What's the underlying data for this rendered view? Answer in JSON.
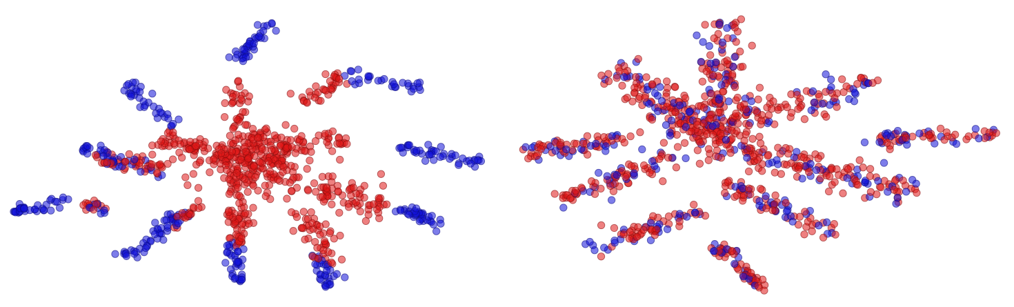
{
  "chart_data": [
    {
      "type": "scatter",
      "title": "",
      "xlabel": "",
      "ylabel": "",
      "axes_visible": false,
      "grid": false,
      "legend": "none",
      "point_alpha": 0.55,
      "xlim": [
        0,
        100
      ],
      "ylim": [
        0,
        100
      ],
      "series": [
        {
          "color": "#e01818",
          "clusters": [
            {
              "start": [
                48,
                26
              ],
              "end": [
                48,
                75
              ],
              "spread": 1.6,
              "count": 100
            },
            {
              "start": [
                46,
                52
              ],
              "end": [
                31,
                44
              ],
              "spread": 2.2,
              "count": 70
            },
            {
              "start": [
                50,
                56
              ],
              "end": [
                78,
                68
              ],
              "spread": 3.2,
              "count": 120
            },
            {
              "start": [
                53,
                54
              ],
              "end": [
                60,
                46
              ],
              "spread": 2.2,
              "count": 45
            },
            {
              "start": [
                50,
                44
              ],
              "end": [
                71,
                47
              ],
              "spread": 2.3,
              "count": 50
            },
            {
              "start": [
                33,
                55
              ],
              "end": [
                18,
                51
              ],
              "spread": 1.6,
              "count": 45
            },
            {
              "start": [
                60,
                33
              ],
              "end": [
                70,
                24
              ],
              "spread": 1.2,
              "count": 35
            },
            {
              "start": [
                48,
                64
              ],
              "end": [
                48,
                82
              ],
              "spread": 1.0,
              "count": 35
            },
            {
              "start": [
                61,
                68
              ],
              "end": [
                67,
                88
              ],
              "spread": 1.6,
              "count": 50
            },
            {
              "start": [
                41,
                67
              ],
              "end": [
                33,
                75
              ],
              "spread": 1.1,
              "count": 20
            },
            {
              "start": [
                47,
                48
              ],
              "end": [
                52,
                58
              ],
              "spread": 6,
              "count": 90
            },
            {
              "start": [
                16,
                67
              ],
              "end": [
                21,
                68
              ],
              "spread": 0.8,
              "count": 12
            }
          ]
        },
        {
          "color": "#1212d8",
          "clusters": [
            {
              "start": [
                48,
                18
              ],
              "end": [
                55,
                5
              ],
              "spread": 1.1,
              "count": 40
            },
            {
              "start": [
                25,
                26
              ],
              "end": [
                35,
                42
              ],
              "spread": 1.3,
              "count": 35
            },
            {
              "start": [
                15,
                48
              ],
              "end": [
                33,
                57
              ],
              "spread": 1.3,
              "count": 40
            },
            {
              "start": [
                1,
                70
              ],
              "end": [
                13,
                66
              ],
              "spread": 1.0,
              "count": 35
            },
            {
              "start": [
                70,
                23
              ],
              "end": [
                85,
                28
              ],
              "spread": 1.1,
              "count": 30
            },
            {
              "start": [
                81,
                48
              ],
              "end": [
                98,
                53
              ],
              "spread": 1.2,
              "count": 45
            },
            {
              "start": [
                24,
                86
              ],
              "end": [
                38,
                68
              ],
              "spread": 1.4,
              "count": 50
            },
            {
              "start": [
                47,
                80
              ],
              "end": [
                48,
                94
              ],
              "spread": 1.0,
              "count": 35
            },
            {
              "start": [
                64,
                85
              ],
              "end": [
                67,
                95
              ],
              "spread": 1.1,
              "count": 30
            },
            {
              "start": [
                81,
                69
              ],
              "end": [
                90,
                74
              ],
              "spread": 1.1,
              "count": 35
            },
            {
              "start": [
                17,
                67
              ],
              "end": [
                21,
                70
              ],
              "spread": 0.8,
              "count": 8
            }
          ]
        }
      ]
    },
    {
      "type": "scatter",
      "title": "",
      "xlabel": "",
      "ylabel": "",
      "axes_visible": false,
      "grid": false,
      "legend": "none",
      "point_alpha": 0.55,
      "xlim": [
        0,
        100
      ],
      "ylim": [
        0,
        100
      ],
      "series": [
        {
          "color": "#e01818",
          "clusters": [
            {
              "start": [
                40,
                46
              ],
              "end": [
                80,
                64
              ],
              "spread": 2.6,
              "count": 110
            },
            {
              "start": [
                37,
                46
              ],
              "end": [
                20,
                20
              ],
              "spread": 3.0,
              "count": 90
            },
            {
              "start": [
                40,
                44
              ],
              "end": [
                42,
                5
              ],
              "spread": 2.5,
              "count": 90
            },
            {
              "start": [
                45,
                38
              ],
              "end": [
                73,
                26
              ],
              "spread": 2.5,
              "count": 65
            },
            {
              "start": [
                33,
                50
              ],
              "end": [
                8,
                66
              ],
              "spread": 2.0,
              "count": 55
            },
            {
              "start": [
                1,
                50
              ],
              "end": [
                22,
                45
              ],
              "spread": 1.6,
              "count": 45
            },
            {
              "start": [
                42,
                60
              ],
              "end": [
                64,
                77
              ],
              "spread": 1.6,
              "count": 50
            },
            {
              "start": [
                14,
                83
              ],
              "end": [
                36,
                69
              ],
              "spread": 1.8,
              "count": 45
            },
            {
              "start": [
                40,
                81
              ],
              "end": [
                49,
                96
              ],
              "spread": 1.4,
              "count": 40
            },
            {
              "start": [
                70,
                46
              ],
              "end": [
                98,
                43
              ],
              "spread": 1.3,
              "count": 40
            },
            {
              "start": [
                33,
                42
              ],
              "end": [
                47,
                40
              ],
              "spread": 6,
              "count": 70
            }
          ]
        },
        {
          "color": "#1212d8",
          "clusters": [
            {
              "start": [
                40,
                46
              ],
              "end": [
                80,
                64
              ],
              "spread": 2.6,
              "count": 45
            },
            {
              "start": [
                37,
                46
              ],
              "end": [
                20,
                20
              ],
              "spread": 3.0,
              "count": 40
            },
            {
              "start": [
                40,
                44
              ],
              "end": [
                42,
                5
              ],
              "spread": 2.5,
              "count": 40
            },
            {
              "start": [
                45,
                38
              ],
              "end": [
                73,
                26
              ],
              "spread": 2.5,
              "count": 30
            },
            {
              "start": [
                33,
                50
              ],
              "end": [
                8,
                66
              ],
              "spread": 2.0,
              "count": 25
            },
            {
              "start": [
                1,
                50
              ],
              "end": [
                22,
                45
              ],
              "spread": 1.6,
              "count": 25
            },
            {
              "start": [
                42,
                60
              ],
              "end": [
                64,
                77
              ],
              "spread": 1.6,
              "count": 30
            },
            {
              "start": [
                14,
                83
              ],
              "end": [
                36,
                69
              ],
              "spread": 1.8,
              "count": 25
            },
            {
              "start": [
                40,
                81
              ],
              "end": [
                49,
                96
              ],
              "spread": 1.4,
              "count": 18
            },
            {
              "start": [
                70,
                46
              ],
              "end": [
                98,
                43
              ],
              "spread": 1.3,
              "count": 25
            }
          ]
        }
      ]
    }
  ]
}
